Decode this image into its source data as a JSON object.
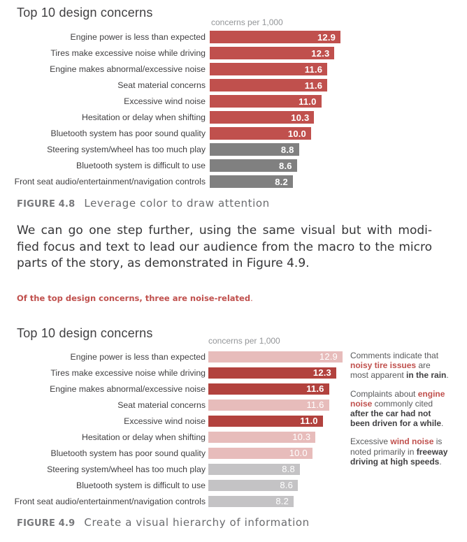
{
  "page": {
    "background": "#ffffff"
  },
  "colors": {
    "red": "#c0504d",
    "dark_red": "#b2423e",
    "pink": "#e7bcbb",
    "gray": "#808080",
    "light_gray": "#c4c3c5",
    "label_text": "#414042",
    "axis_note_text": "#939598",
    "caption_text": "#6d6e71",
    "body_text": "#3b3c3e",
    "value_text": "#ffffff"
  },
  "chart_data": [
    {
      "type": "bar",
      "title": "Top 10 design concerns",
      "axis_note": "concerns per 1,000",
      "categories": [
        "Engine power is less than expected",
        "Tires make excessive noise while driving",
        "Engine makes abnormal/excessive noise",
        "Seat material concerns",
        "Excessive wind noise",
        "Hesitation or delay when shifting",
        "Bluetooth system has poor sound quality",
        "Steering system/wheel has too much play",
        "Bluetooth system is difficult to use",
        "Front seat audio/entertainment/navigation controls"
      ],
      "values": [
        12.9,
        12.3,
        11.6,
        11.6,
        11.0,
        10.3,
        10.0,
        8.8,
        8.6,
        8.2
      ],
      "value_labels": [
        "12.9",
        "12.3",
        "11.6",
        "11.6",
        "11.0",
        "10.3",
        "10.0",
        "8.8",
        "8.6",
        "8.2"
      ],
      "bar_colors": [
        "red",
        "red",
        "red",
        "red",
        "red",
        "red",
        "red",
        "gray",
        "gray",
        "gray"
      ],
      "value_bold": [
        true,
        true,
        true,
        true,
        true,
        true,
        true,
        true,
        true,
        true
      ],
      "xlim": [
        0,
        12.9
      ],
      "grid": false,
      "legend": false,
      "caption_label": "FIGURE 4.8",
      "caption_text": "Leverage color to draw attention"
    },
    {
      "type": "bar",
      "title": "Top 10 design concerns",
      "axis_note": "concerns per 1,000",
      "categories": [
        "Engine power is less than expected",
        "Tires make excessive noise while driving",
        "Engine makes abnormal/excessive noise",
        "Seat material concerns",
        "Excessive wind noise",
        "Hesitation or delay when shifting",
        "Bluetooth system has poor sound quality",
        "Steering system/wheel has too much play",
        "Bluetooth system is difficult to use",
        "Front seat audio/entertainment/navigation controls"
      ],
      "values": [
        12.9,
        12.3,
        11.6,
        11.6,
        11.0,
        10.3,
        10.0,
        8.8,
        8.6,
        8.2
      ],
      "value_labels": [
        "12.9",
        "12.3",
        "11.6",
        "11.6",
        "11.0",
        "10.3",
        "10.0",
        "8.8",
        "8.6",
        "8.2"
      ],
      "bar_colors": [
        "pink",
        "dark_red",
        "dark_red",
        "pink",
        "dark_red",
        "pink",
        "pink",
        "light_gray",
        "light_gray",
        "light_gray"
      ],
      "value_bold": [
        false,
        true,
        true,
        false,
        true,
        false,
        false,
        false,
        false,
        false
      ],
      "xlim": [
        0,
        12.9
      ],
      "grid": false,
      "legend": false,
      "caption_label": "FIGURE 4.9",
      "caption_text": "Create a visual hierarchy of information",
      "annotations": [
        {
          "lines": [
            [
              {
                "t": "Comments indicate that",
                "s": "n"
              }
            ],
            [
              {
                "t": "noisy tire issues",
                "s": "rb"
              },
              {
                "t": " are",
                "s": "n"
              }
            ],
            [
              {
                "t": "most apparent ",
                "s": "n"
              },
              {
                "t": "in the rain",
                "s": "db"
              },
              {
                "t": ".",
                "s": "n"
              }
            ]
          ]
        },
        {
          "lines": [
            [
              {
                "t": "Complaints about ",
                "s": "n"
              },
              {
                "t": "engine",
                "s": "rb"
              }
            ],
            [
              {
                "t": "noise",
                "s": "rb"
              },
              {
                "t": " commonly cited",
                "s": "n"
              }
            ],
            [
              {
                "t": "after the car had not",
                "s": "db"
              }
            ],
            [
              {
                "t": "been driven for a while",
                "s": "db"
              },
              {
                "t": ".",
                "s": "n"
              }
            ]
          ]
        },
        {
          "lines": [
            [
              {
                "t": "Excessive ",
                "s": "n"
              },
              {
                "t": "wind noise",
                "s": "rb"
              },
              {
                "t": " is",
                "s": "n"
              }
            ],
            [
              {
                "t": "noted primarily in ",
                "s": "n"
              },
              {
                "t": "freeway",
                "s": "db"
              }
            ],
            [
              {
                "t": "driving at high speeds",
                "s": "db"
              },
              {
                "t": ".",
                "s": "n"
              }
            ]
          ]
        }
      ]
    }
  ],
  "paragraph": {
    "lines": [
      "We can go one step further, using the same visual but with modi-",
      "fied focus and text to lead our audience from the macro to the micro",
      "parts of the story, as demonstrated in Figure 4.9."
    ]
  },
  "callout": {
    "text": "Of the top design concerns, three are noise-related",
    "period": "."
  }
}
